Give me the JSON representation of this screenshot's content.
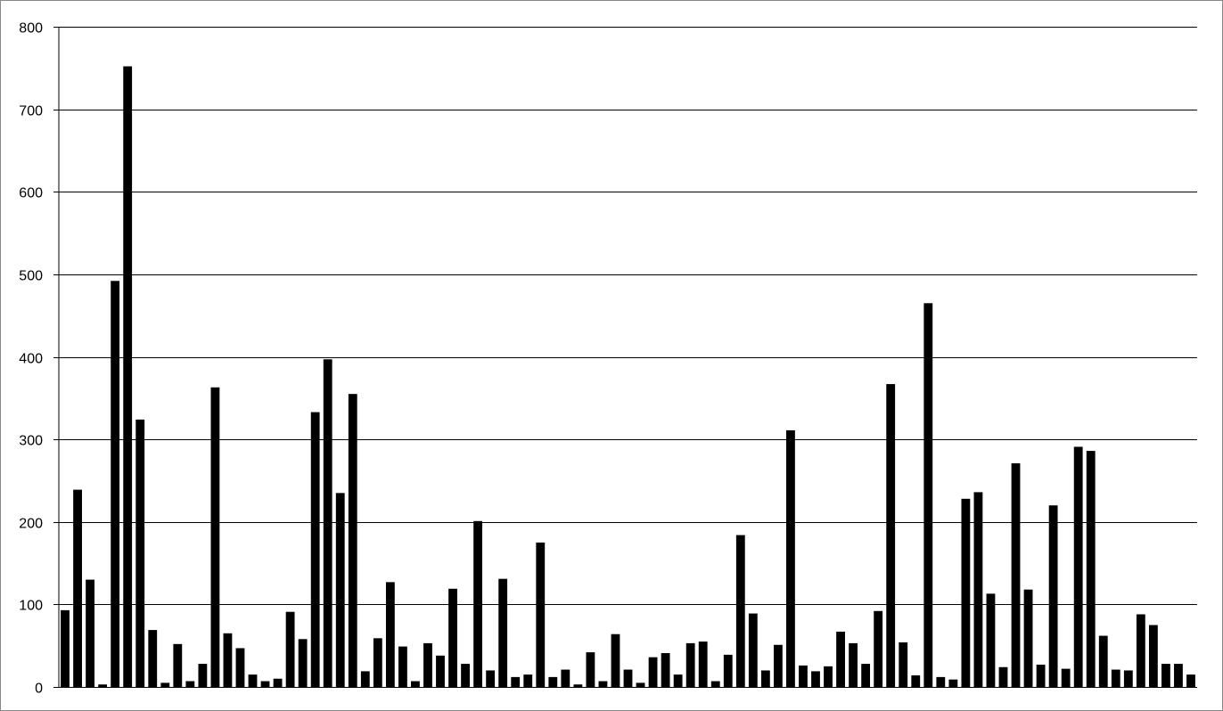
{
  "chart_data": {
    "type": "bar",
    "title": "",
    "xlabel": "",
    "ylabel": "",
    "ylim": [
      0,
      800
    ],
    "yticks": [
      0,
      100,
      200,
      300,
      400,
      500,
      600,
      700,
      800
    ],
    "grid": true,
    "legend": "none",
    "bar_color": "#000000",
    "grid_color": "#000000",
    "values": [
      93,
      239,
      130,
      3,
      492,
      752,
      324,
      69,
      5,
      52,
      7,
      28,
      363,
      65,
      47,
      15,
      7,
      10,
      91,
      58,
      333,
      397,
      235,
      355,
      19,
      59,
      127,
      49,
      7,
      53,
      38,
      119,
      28,
      201,
      20,
      131,
      12,
      15,
      175,
      12,
      21,
      3,
      42,
      7,
      64,
      21,
      5,
      36,
      41,
      15,
      53,
      55,
      7,
      39,
      184,
      89,
      20,
      51,
      311,
      26,
      19,
      25,
      67,
      53,
      28,
      92,
      367,
      54,
      14,
      465,
      12,
      9,
      228,
      236,
      113,
      24,
      271,
      118,
      27,
      220,
      22,
      291,
      286,
      62,
      21,
      20,
      88,
      75,
      28,
      28,
      15
    ]
  }
}
